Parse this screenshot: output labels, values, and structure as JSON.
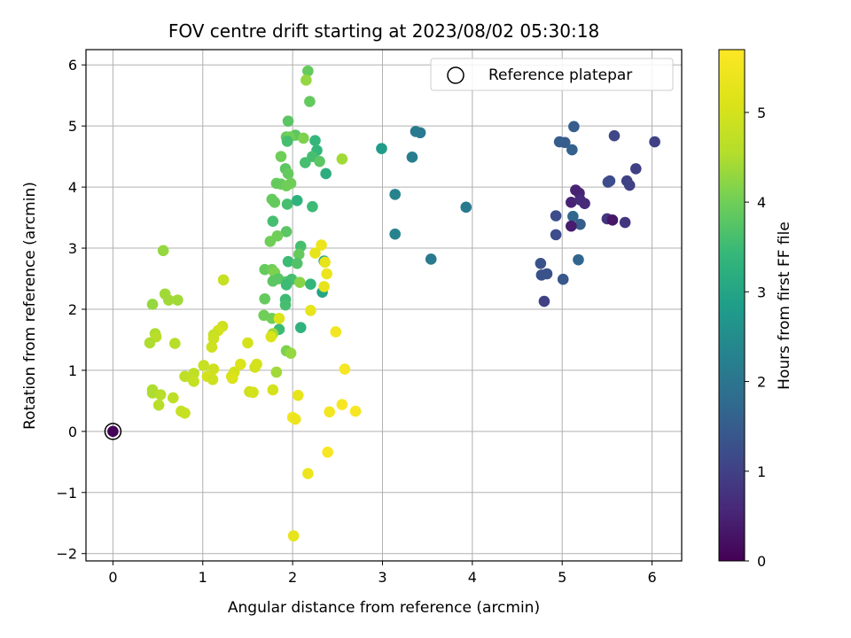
{
  "chart_data": {
    "type": "scatter",
    "title": "FOV centre drift starting at 2023/08/02 05:30:18",
    "xlabel": "Angular distance from reference (arcmin)",
    "ylabel": "Rotation from reference (arcmin)",
    "xlim": [
      -0.3,
      6.33
    ],
    "ylim": [
      -2.12,
      6.25
    ],
    "xticks": [
      "0",
      "1",
      "2",
      "3",
      "4",
      "5",
      "6"
    ],
    "yticks": [
      "−2",
      "−1",
      "0",
      "1",
      "2",
      "3",
      "4",
      "5",
      "6"
    ],
    "grid": true,
    "legend": {
      "label": "Reference platepar",
      "position": "top-right"
    },
    "colorbar": {
      "label": "Hours from first FF file",
      "range": [
        0,
        5.7
      ],
      "ticks": [
        "0",
        "1",
        "2",
        "3",
        "4",
        "5"
      ],
      "colormap": "viridis"
    },
    "reference_point": {
      "x": 0,
      "y": 0
    },
    "points": [
      {
        "x": 0.0,
        "y": 0.0,
        "h": 0.05
      },
      {
        "x": 6.03,
        "y": 4.74,
        "h": 1.0
      },
      {
        "x": 5.58,
        "y": 4.84,
        "h": 1.1
      },
      {
        "x": 5.82,
        "y": 4.3,
        "h": 1.0
      },
      {
        "x": 5.72,
        "y": 4.1,
        "h": 1.0
      },
      {
        "x": 5.75,
        "y": 4.03,
        "h": 1.0
      },
      {
        "x": 5.53,
        "y": 4.1,
        "h": 1.2
      },
      {
        "x": 5.51,
        "y": 4.08,
        "h": 1.2
      },
      {
        "x": 5.13,
        "y": 4.99,
        "h": 1.5
      },
      {
        "x": 4.97,
        "y": 4.74,
        "h": 1.5
      },
      {
        "x": 5.03,
        "y": 4.73,
        "h": 1.5
      },
      {
        "x": 5.11,
        "y": 4.61,
        "h": 1.6
      },
      {
        "x": 5.15,
        "y": 3.95,
        "h": 0.5
      },
      {
        "x": 5.19,
        "y": 3.9,
        "h": 0.5
      },
      {
        "x": 5.1,
        "y": 3.75,
        "h": 0.5
      },
      {
        "x": 5.25,
        "y": 3.73,
        "h": 0.6
      },
      {
        "x": 5.2,
        "y": 3.79,
        "h": 0.6
      },
      {
        "x": 4.93,
        "y": 3.53,
        "h": 1.2
      },
      {
        "x": 5.12,
        "y": 3.52,
        "h": 1.7
      },
      {
        "x": 5.2,
        "y": 3.39,
        "h": 1.5
      },
      {
        "x": 5.1,
        "y": 3.36,
        "h": 0.4
      },
      {
        "x": 5.5,
        "y": 3.48,
        "h": 0.8
      },
      {
        "x": 5.56,
        "y": 3.46,
        "h": 0.3
      },
      {
        "x": 5.7,
        "y": 3.42,
        "h": 0.8
      },
      {
        "x": 4.93,
        "y": 3.22,
        "h": 1.2
      },
      {
        "x": 5.18,
        "y": 2.81,
        "h": 1.7
      },
      {
        "x": 4.76,
        "y": 2.75,
        "h": 1.3
      },
      {
        "x": 4.83,
        "y": 2.58,
        "h": 1.3
      },
      {
        "x": 4.77,
        "y": 2.56,
        "h": 1.3
      },
      {
        "x": 5.01,
        "y": 2.49,
        "h": 1.4
      },
      {
        "x": 4.8,
        "y": 2.13,
        "h": 1.0
      },
      {
        "x": 3.37,
        "y": 4.91,
        "h": 2.1
      },
      {
        "x": 3.42,
        "y": 4.89,
        "h": 2.1
      },
      {
        "x": 3.33,
        "y": 4.49,
        "h": 2.2
      },
      {
        "x": 3.14,
        "y": 3.88,
        "h": 2.3
      },
      {
        "x": 3.14,
        "y": 3.23,
        "h": 2.3
      },
      {
        "x": 3.93,
        "y": 3.67,
        "h": 2.1
      },
      {
        "x": 3.54,
        "y": 2.82,
        "h": 2.1
      },
      {
        "x": 2.99,
        "y": 4.63,
        "h": 2.8
      },
      {
        "x": 2.17,
        "y": 5.9,
        "h": 3.9
      },
      {
        "x": 2.15,
        "y": 5.75,
        "h": 4.3
      },
      {
        "x": 2.19,
        "y": 5.4,
        "h": 3.9
      },
      {
        "x": 1.95,
        "y": 5.08,
        "h": 3.8
      },
      {
        "x": 1.93,
        "y": 4.82,
        "h": 3.9
      },
      {
        "x": 2.03,
        "y": 4.85,
        "h": 3.8
      },
      {
        "x": 1.97,
        "y": 4.82,
        "h": 4.0
      },
      {
        "x": 2.12,
        "y": 4.8,
        "h": 4.1
      },
      {
        "x": 2.25,
        "y": 4.76,
        "h": 3.4
      },
      {
        "x": 1.94,
        "y": 4.75,
        "h": 3.6
      },
      {
        "x": 2.27,
        "y": 4.6,
        "h": 3.4
      },
      {
        "x": 2.22,
        "y": 4.5,
        "h": 3.6
      },
      {
        "x": 2.3,
        "y": 4.42,
        "h": 3.8
      },
      {
        "x": 2.14,
        "y": 4.4,
        "h": 3.6
      },
      {
        "x": 2.55,
        "y": 4.46,
        "h": 4.4
      },
      {
        "x": 1.87,
        "y": 4.5,
        "h": 4.0
      },
      {
        "x": 1.92,
        "y": 4.3,
        "h": 3.8
      },
      {
        "x": 1.95,
        "y": 4.22,
        "h": 3.9
      },
      {
        "x": 2.37,
        "y": 4.22,
        "h": 3.2
      },
      {
        "x": 1.87,
        "y": 4.05,
        "h": 3.9
      },
      {
        "x": 1.93,
        "y": 4.02,
        "h": 4.0
      },
      {
        "x": 1.82,
        "y": 4.06,
        "h": 3.9
      },
      {
        "x": 1.98,
        "y": 4.06,
        "h": 4.0
      },
      {
        "x": 1.77,
        "y": 3.8,
        "h": 3.9
      },
      {
        "x": 1.8,
        "y": 3.75,
        "h": 3.9
      },
      {
        "x": 1.94,
        "y": 3.72,
        "h": 3.6
      },
      {
        "x": 2.05,
        "y": 3.78,
        "h": 3.3
      },
      {
        "x": 2.22,
        "y": 3.68,
        "h": 3.5
      },
      {
        "x": 1.78,
        "y": 3.44,
        "h": 3.6
      },
      {
        "x": 1.93,
        "y": 3.27,
        "h": 3.8
      },
      {
        "x": 1.83,
        "y": 3.2,
        "h": 4.0
      },
      {
        "x": 1.75,
        "y": 3.11,
        "h": 4.0
      },
      {
        "x": 2.09,
        "y": 3.03,
        "h": 3.6
      },
      {
        "x": 2.07,
        "y": 2.9,
        "h": 3.9
      },
      {
        "x": 1.95,
        "y": 2.78,
        "h": 3.5
      },
      {
        "x": 2.05,
        "y": 2.75,
        "h": 3.7
      },
      {
        "x": 2.35,
        "y": 2.79,
        "h": 3.1
      },
      {
        "x": 1.69,
        "y": 2.65,
        "h": 3.9
      },
      {
        "x": 1.77,
        "y": 2.65,
        "h": 4.0
      },
      {
        "x": 1.8,
        "y": 2.6,
        "h": 4.1
      },
      {
        "x": 1.84,
        "y": 2.5,
        "h": 3.8
      },
      {
        "x": 1.93,
        "y": 2.45,
        "h": 3.7
      },
      {
        "x": 1.99,
        "y": 2.49,
        "h": 3.6
      },
      {
        "x": 1.78,
        "y": 2.46,
        "h": 3.8
      },
      {
        "x": 2.08,
        "y": 2.44,
        "h": 4.2
      },
      {
        "x": 1.93,
        "y": 2.4,
        "h": 3.5
      },
      {
        "x": 2.2,
        "y": 2.41,
        "h": 3.4
      },
      {
        "x": 2.33,
        "y": 2.28,
        "h": 3.0
      },
      {
        "x": 1.69,
        "y": 2.17,
        "h": 3.9
      },
      {
        "x": 1.92,
        "y": 2.16,
        "h": 3.5
      },
      {
        "x": 1.92,
        "y": 2.07,
        "h": 3.6
      },
      {
        "x": 1.68,
        "y": 1.9,
        "h": 4.0
      },
      {
        "x": 1.77,
        "y": 1.85,
        "h": 4.0
      },
      {
        "x": 1.85,
        "y": 1.67,
        "h": 3.5
      },
      {
        "x": 2.09,
        "y": 1.7,
        "h": 3.3
      },
      {
        "x": 1.78,
        "y": 1.6,
        "h": 4.4
      },
      {
        "x": 1.93,
        "y": 1.32,
        "h": 4.1
      },
      {
        "x": 1.98,
        "y": 1.28,
        "h": 4.3
      },
      {
        "x": 1.82,
        "y": 0.97,
        "h": 4.4
      },
      {
        "x": 2.32,
        "y": 3.05,
        "h": 5.4
      },
      {
        "x": 2.25,
        "y": 2.92,
        "h": 5.3
      },
      {
        "x": 2.36,
        "y": 2.77,
        "h": 5.3
      },
      {
        "x": 2.38,
        "y": 2.58,
        "h": 5.4
      },
      {
        "x": 2.35,
        "y": 2.37,
        "h": 5.3
      },
      {
        "x": 2.2,
        "y": 1.98,
        "h": 5.3
      },
      {
        "x": 1.85,
        "y": 1.85,
        "h": 5.1
      },
      {
        "x": 1.76,
        "y": 1.55,
        "h": 5.1
      },
      {
        "x": 2.48,
        "y": 1.63,
        "h": 5.5
      },
      {
        "x": 2.58,
        "y": 1.02,
        "h": 5.6
      },
      {
        "x": 2.06,
        "y": 0.59,
        "h": 5.3
      },
      {
        "x": 2.0,
        "y": 0.23,
        "h": 5.5
      },
      {
        "x": 2.03,
        "y": 0.2,
        "h": 5.4
      },
      {
        "x": 2.41,
        "y": 0.32,
        "h": 5.5
      },
      {
        "x": 2.55,
        "y": 0.44,
        "h": 5.6
      },
      {
        "x": 2.7,
        "y": 0.33,
        "h": 5.6
      },
      {
        "x": 2.39,
        "y": -0.34,
        "h": 5.6
      },
      {
        "x": 2.17,
        "y": -0.69,
        "h": 5.4
      },
      {
        "x": 2.01,
        "y": -1.71,
        "h": 5.3
      },
      {
        "x": 1.23,
        "y": 2.48,
        "h": 4.8
      },
      {
        "x": 1.22,
        "y": 1.72,
        "h": 4.9
      },
      {
        "x": 1.17,
        "y": 1.65,
        "h": 5.0
      },
      {
        "x": 1.12,
        "y": 1.58,
        "h": 4.8
      },
      {
        "x": 1.12,
        "y": 1.52,
        "h": 4.9
      },
      {
        "x": 1.1,
        "y": 1.38,
        "h": 4.9
      },
      {
        "x": 1.5,
        "y": 1.45,
        "h": 5.0
      },
      {
        "x": 1.42,
        "y": 1.1,
        "h": 5.1
      },
      {
        "x": 1.6,
        "y": 1.1,
        "h": 5.0
      },
      {
        "x": 1.58,
        "y": 1.05,
        "h": 5.0
      },
      {
        "x": 1.01,
        "y": 1.08,
        "h": 4.8
      },
      {
        "x": 1.12,
        "y": 1.02,
        "h": 4.9
      },
      {
        "x": 1.35,
        "y": 0.97,
        "h": 5.0
      },
      {
        "x": 1.32,
        "y": 0.9,
        "h": 5.0
      },
      {
        "x": 1.33,
        "y": 0.87,
        "h": 5.1
      },
      {
        "x": 0.9,
        "y": 0.95,
        "h": 4.7
      },
      {
        "x": 0.8,
        "y": 0.9,
        "h": 4.7
      },
      {
        "x": 0.88,
        "y": 0.87,
        "h": 4.7
      },
      {
        "x": 0.9,
        "y": 0.82,
        "h": 4.8
      },
      {
        "x": 1.05,
        "y": 0.9,
        "h": 5.0
      },
      {
        "x": 1.11,
        "y": 0.85,
        "h": 4.9
      },
      {
        "x": 1.78,
        "y": 0.68,
        "h": 5.0
      },
      {
        "x": 1.52,
        "y": 0.65,
        "h": 4.9
      },
      {
        "x": 1.56,
        "y": 0.64,
        "h": 5.0
      },
      {
        "x": 0.56,
        "y": 2.96,
        "h": 4.3
      },
      {
        "x": 0.58,
        "y": 2.25,
        "h": 4.4
      },
      {
        "x": 0.62,
        "y": 2.15,
        "h": 4.4
      },
      {
        "x": 0.72,
        "y": 2.15,
        "h": 4.4
      },
      {
        "x": 0.44,
        "y": 2.08,
        "h": 4.3
      },
      {
        "x": 0.47,
        "y": 1.6,
        "h": 4.5
      },
      {
        "x": 0.48,
        "y": 1.55,
        "h": 4.6
      },
      {
        "x": 0.41,
        "y": 1.45,
        "h": 4.5
      },
      {
        "x": 0.69,
        "y": 1.44,
        "h": 4.6
      },
      {
        "x": 0.44,
        "y": 0.68,
        "h": 4.5
      },
      {
        "x": 0.44,
        "y": 0.63,
        "h": 4.5
      },
      {
        "x": 0.53,
        "y": 0.6,
        "h": 4.6
      },
      {
        "x": 0.67,
        "y": 0.55,
        "h": 4.7
      },
      {
        "x": 0.51,
        "y": 0.43,
        "h": 4.6
      },
      {
        "x": 0.76,
        "y": 0.33,
        "h": 4.8
      },
      {
        "x": 0.8,
        "y": 0.3,
        "h": 4.8
      }
    ]
  }
}
